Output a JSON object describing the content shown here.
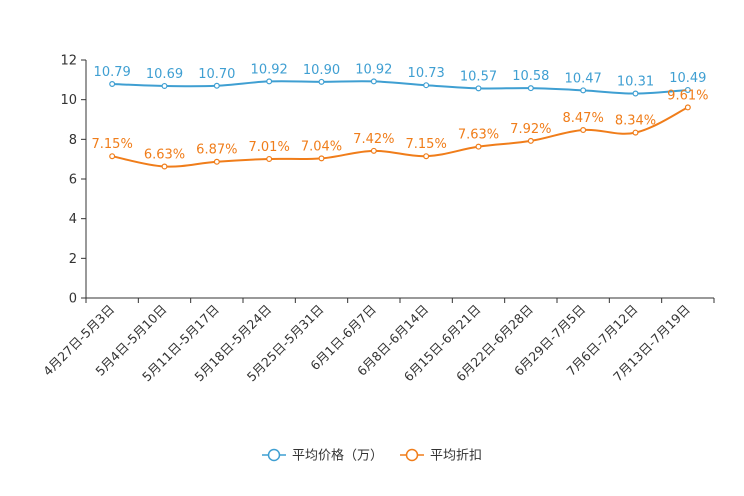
{
  "chart_data": {
    "type": "line",
    "title": "",
    "xlabel": "",
    "ylabel": "",
    "ylim": [
      0,
      12
    ],
    "yticks": [
      0,
      2,
      4,
      6,
      8,
      10,
      12
    ],
    "grid": false,
    "legend_position": "bottom-center",
    "categories": [
      "4月27日-5月3日",
      "5月4日-5月10日",
      "5月11日-5月17日",
      "5月18日-5月24日",
      "5月25日-5月31日",
      "6月1日-6月7日",
      "6月8日-6月14日",
      "6月15日-6月21日",
      "6月22日-6月28日",
      "6月29日-7月5日",
      "7月6日-7月12日",
      "7月13日-7月19日"
    ],
    "series": [
      {
        "name": "平均价格（万）",
        "color": "#3f9fd2",
        "values": [
          10.79,
          10.69,
          10.7,
          10.92,
          10.9,
          10.92,
          10.73,
          10.57,
          10.58,
          10.47,
          10.31,
          10.49
        ],
        "labels": [
          "10.79",
          "10.69",
          "10.70",
          "10.92",
          "10.90",
          "10.92",
          "10.73",
          "10.57",
          "10.58",
          "10.47",
          "10.31",
          "10.49"
        ]
      },
      {
        "name": "平均折扣",
        "color": "#f07d1a",
        "values": [
          7.15,
          6.63,
          6.87,
          7.01,
          7.04,
          7.42,
          7.15,
          7.63,
          7.92,
          8.47,
          8.34,
          9.61
        ],
        "labels": [
          "7.15%",
          "6.63%",
          "6.87%",
          "7.01%",
          "7.04%",
          "7.42%",
          "7.15%",
          "7.63%",
          "7.92%",
          "8.47%",
          "8.34%",
          "9.61%"
        ]
      }
    ]
  }
}
